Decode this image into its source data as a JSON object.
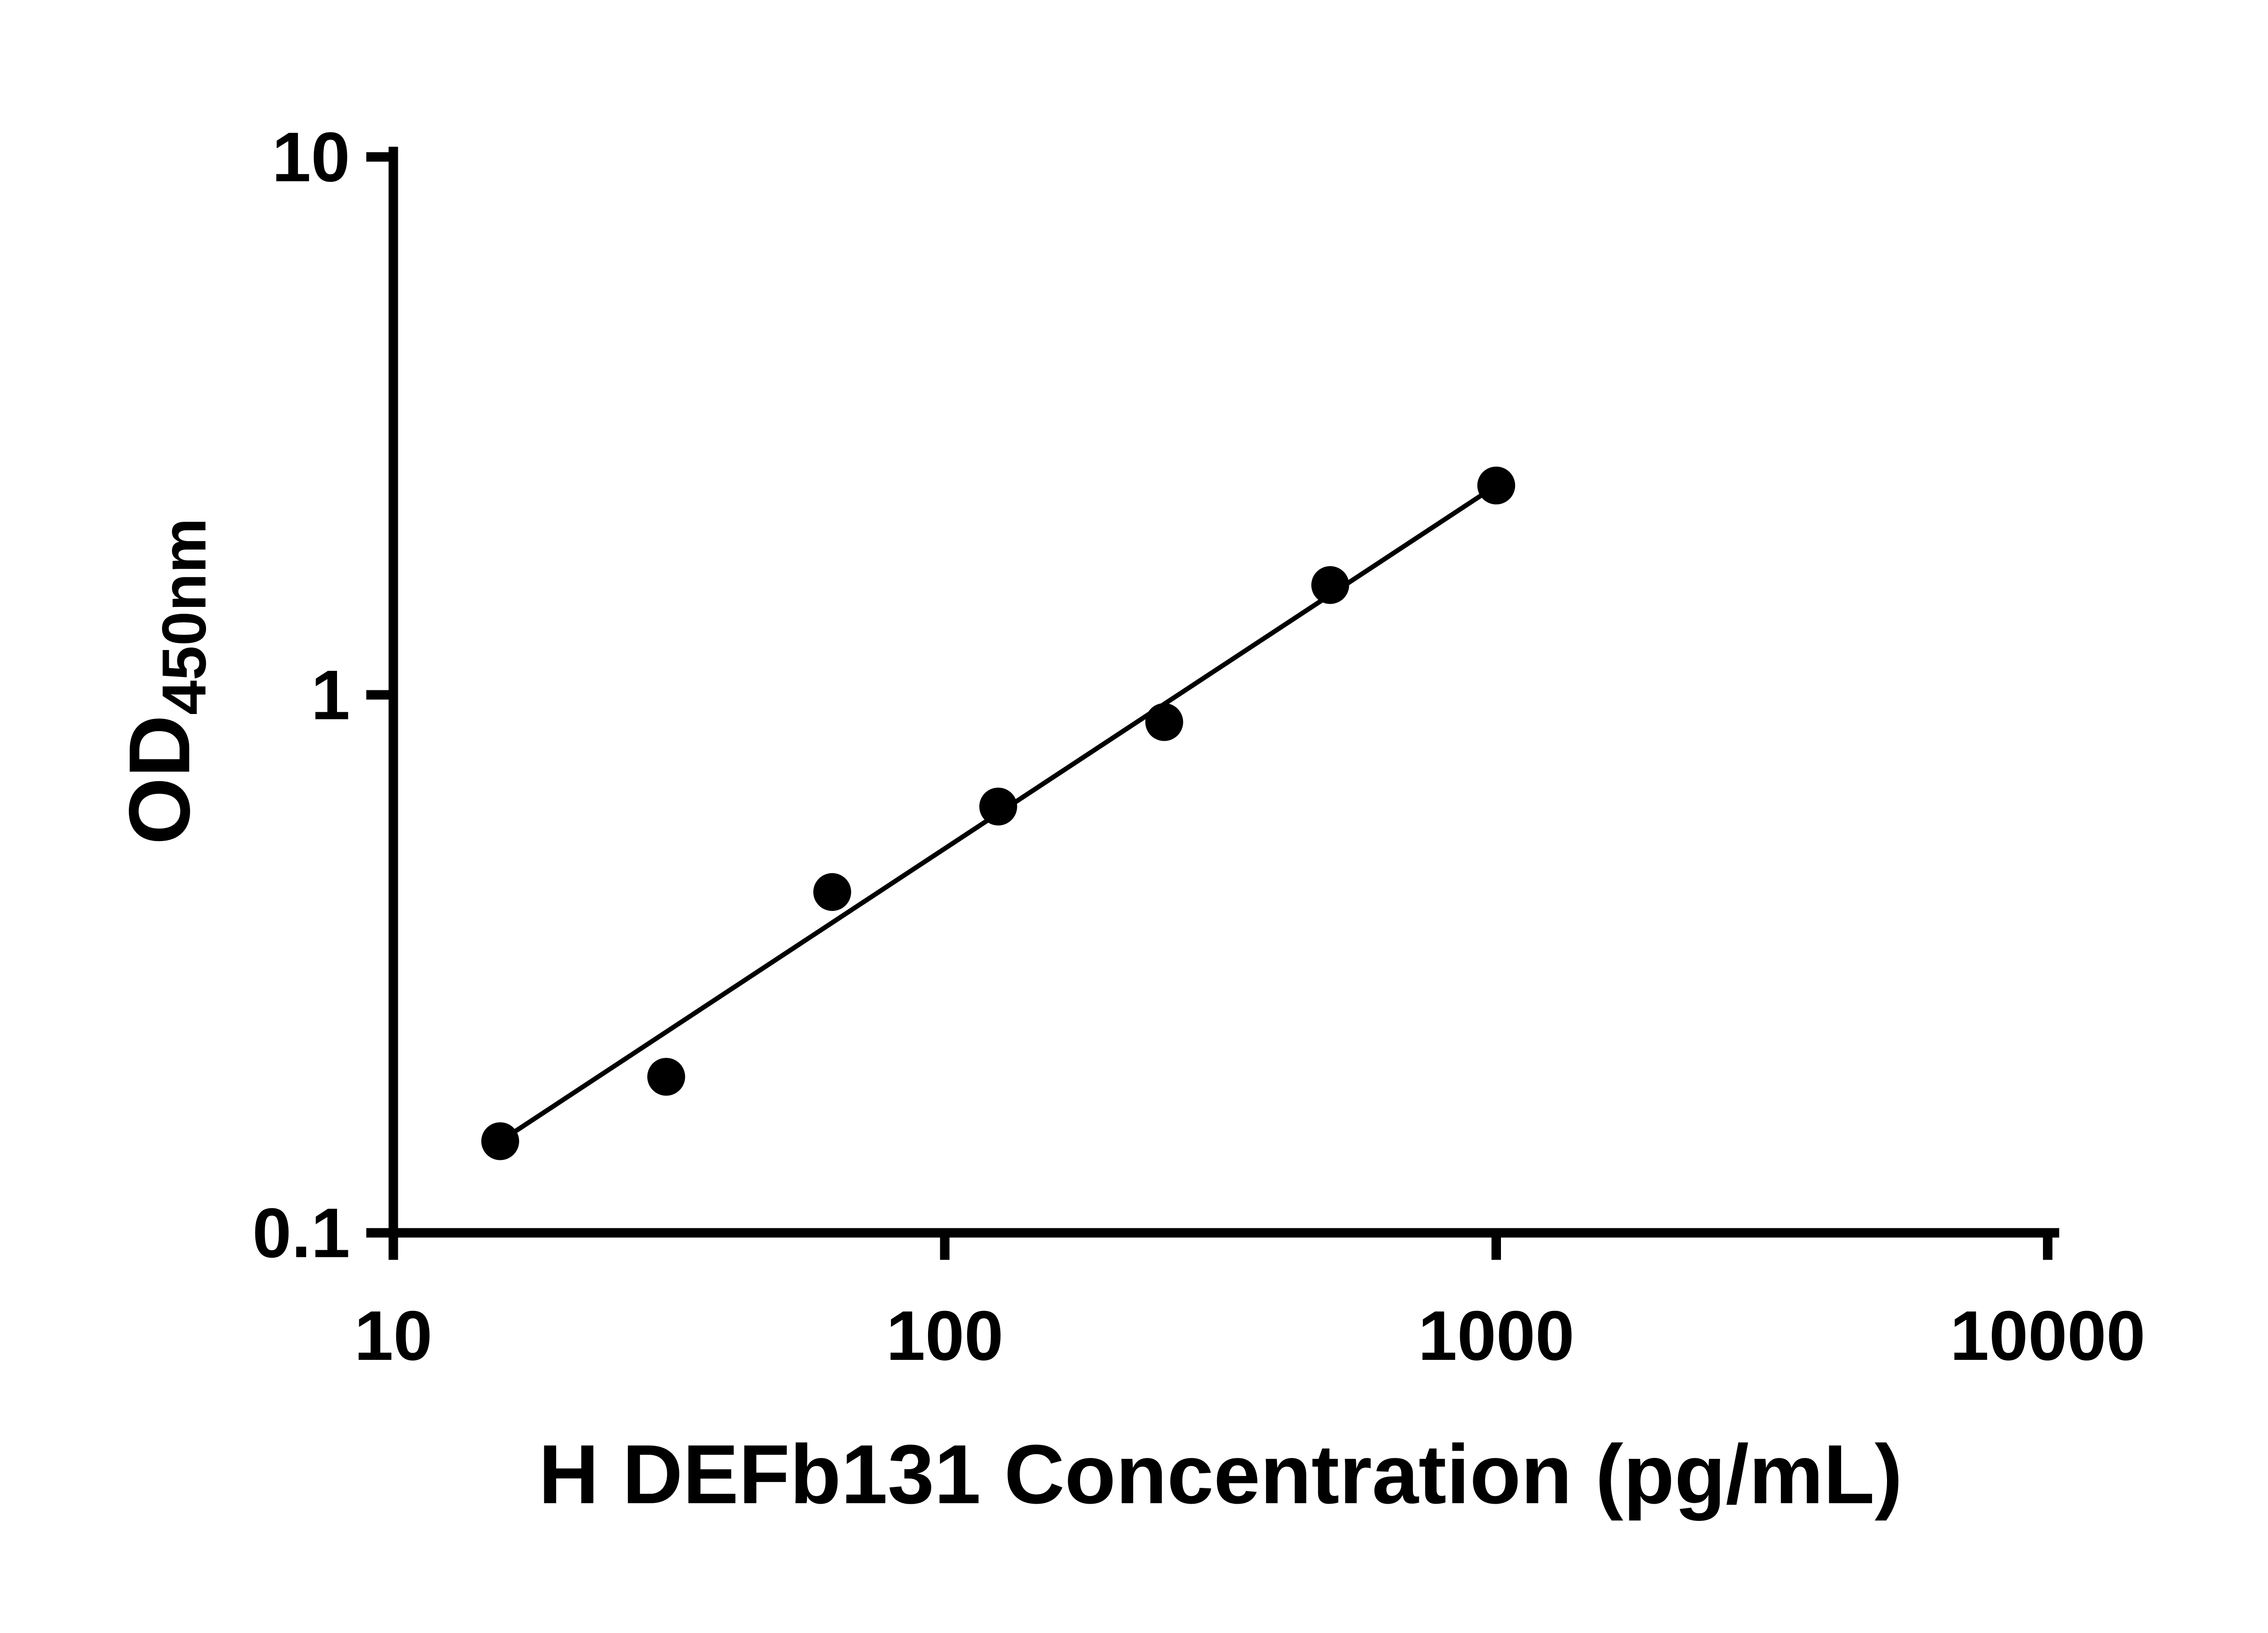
{
  "page": {
    "background": "#ffffff"
  },
  "chart_data": {
    "type": "scatter",
    "title": "",
    "xlabel": "H DEFb131 Concentration (pg/mL)",
    "ylabel_main": "OD",
    "ylabel_sub": "450nm",
    "x_scale": "log",
    "y_scale": "log",
    "x_range": [
      10,
      10000
    ],
    "y_range": [
      0.1,
      10
    ],
    "grid": false,
    "legend": "none",
    "axis_color": "#000000",
    "point_color": "#000000",
    "line_color": "#000000",
    "x_ticks": [
      {
        "value": 10,
        "label": "10"
      },
      {
        "value": 100,
        "label": "100"
      },
      {
        "value": 1000,
        "label": "1000"
      },
      {
        "value": 10000,
        "label": "10000"
      }
    ],
    "y_ticks": [
      {
        "value": 0.1,
        "label": "0.1"
      },
      {
        "value": 1,
        "label": "1"
      },
      {
        "value": 10,
        "label": "10"
      }
    ],
    "series": [
      {
        "name": "standard-curve-points",
        "x": [
          15.625,
          31.25,
          62.5,
          125,
          250,
          500,
          1000
        ],
        "y": [
          0.148,
          0.195,
          0.43,
          0.62,
          0.89,
          1.6,
          2.45
        ]
      }
    ],
    "trend_line": {
      "x1": 15.625,
      "y1": 0.148,
      "x2": 1000,
      "y2": 2.45
    }
  }
}
